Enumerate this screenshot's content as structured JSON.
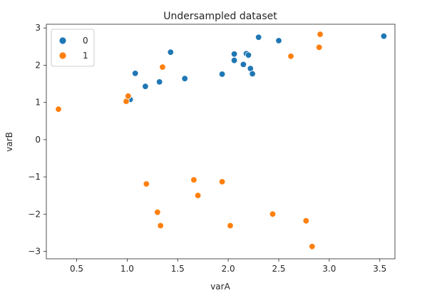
{
  "chart_data": {
    "type": "scatter",
    "title": "Undersampled dataset",
    "xlabel": "varA",
    "ylabel": "varB",
    "xlim": [
      0.2,
      3.65
    ],
    "ylim": [
      -3.2,
      3.1
    ],
    "xticks": [
      0.5,
      1.0,
      1.5,
      2.0,
      2.5,
      3.0,
      3.5
    ],
    "xtick_labels": [
      "0.5",
      "1.0",
      "1.5",
      "2.0",
      "2.5",
      "3.0",
      "3.5"
    ],
    "yticks": [
      -3,
      -2,
      -1,
      0,
      1,
      2,
      3
    ],
    "ytick_labels": [
      "−3",
      "−2",
      "−1",
      "0",
      "1",
      "2",
      "3"
    ],
    "grid": false,
    "legend_position": "top-left",
    "series": [
      {
        "name": "0",
        "color": "#1f77b4",
        "points": [
          [
            1.03,
            1.08
          ],
          [
            1.08,
            1.78
          ],
          [
            1.18,
            1.43
          ],
          [
            1.32,
            1.55
          ],
          [
            1.43,
            2.35
          ],
          [
            1.57,
            1.64
          ],
          [
            1.94,
            1.76
          ],
          [
            2.06,
            2.13
          ],
          [
            2.06,
            2.3
          ],
          [
            2.15,
            2.02
          ],
          [
            2.18,
            2.31
          ],
          [
            2.2,
            2.27
          ],
          [
            2.22,
            1.91
          ],
          [
            2.24,
            1.77
          ],
          [
            2.3,
            2.75
          ],
          [
            2.5,
            2.66
          ],
          [
            3.54,
            2.78
          ]
        ]
      },
      {
        "name": "1",
        "color": "#ff7f0e",
        "points": [
          [
            0.32,
            0.82
          ],
          [
            0.99,
            1.03
          ],
          [
            1.01,
            1.17
          ],
          [
            1.35,
            1.95
          ],
          [
            1.19,
            -1.19
          ],
          [
            1.3,
            -1.95
          ],
          [
            1.33,
            -2.31
          ],
          [
            1.66,
            -1.08
          ],
          [
            1.7,
            -1.5
          ],
          [
            1.94,
            -1.13
          ],
          [
            2.02,
            -2.31
          ],
          [
            2.44,
            -2.0
          ],
          [
            2.62,
            2.24
          ],
          [
            2.77,
            -2.18
          ],
          [
            2.83,
            -2.87
          ],
          [
            2.9,
            2.48
          ],
          [
            2.91,
            2.83
          ]
        ]
      }
    ]
  }
}
